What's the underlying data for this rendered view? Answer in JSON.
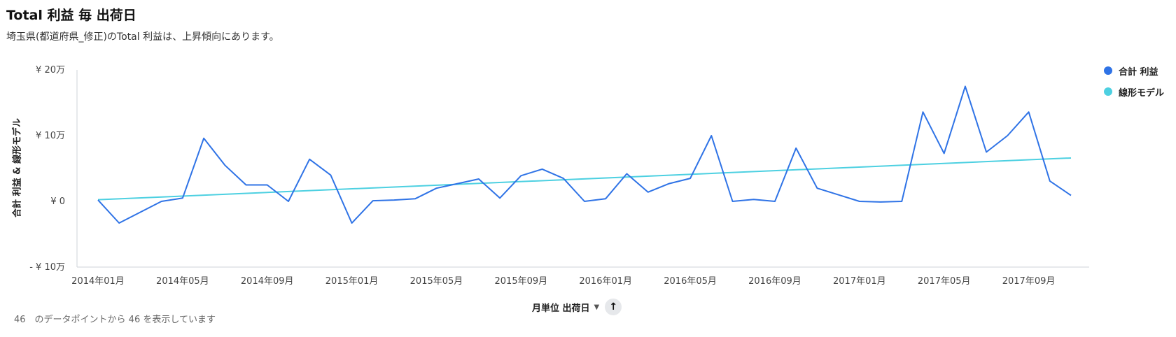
{
  "header": {
    "title": "Total 利益 毎 出荷日",
    "subtitle": "埼玉県(都道府県_修正)のTotal 利益は、上昇傾向にあります。"
  },
  "axis": {
    "y_title": "合計 利益 & 線形モデル",
    "x_title": "月単位 出荷日"
  },
  "footer": {
    "text": "46　のデータポイントから 46 を表示しています"
  },
  "colors": {
    "profit": "#2f73e6",
    "model": "#4dd0e1",
    "axis": "#cfd3d8"
  },
  "chart_data": {
    "type": "line",
    "ylim": [
      -100000,
      200000
    ],
    "y_ticks": [
      {
        "value": 200000,
        "label": "¥ 20万"
      },
      {
        "value": 100000,
        "label": "¥ 10万"
      },
      {
        "value": 0,
        "label": "¥ 0"
      },
      {
        "value": -100000,
        "label": "- ¥ 10万"
      }
    ],
    "x_tick_labels": [
      {
        "index": 0,
        "label": "2014年01月"
      },
      {
        "index": 4,
        "label": "2014年05月"
      },
      {
        "index": 8,
        "label": "2014年09月"
      },
      {
        "index": 12,
        "label": "2015年01月"
      },
      {
        "index": 16,
        "label": "2015年05月"
      },
      {
        "index": 20,
        "label": "2015年09月"
      },
      {
        "index": 24,
        "label": "2016年01月"
      },
      {
        "index": 28,
        "label": "2016年05月"
      },
      {
        "index": 32,
        "label": "2016年09月"
      },
      {
        "index": 36,
        "label": "2017年01月"
      },
      {
        "index": 40,
        "label": "2017年05月"
      },
      {
        "index": 44,
        "label": "2017年09月"
      }
    ],
    "x": [
      "2014-01",
      "2014-02",
      "2014-04",
      "2014-05",
      "2014-06",
      "2014-07",
      "2014-08",
      "2014-09",
      "2014-10",
      "2014-11",
      "2014-12",
      "2015-01",
      "2015-02",
      "2015-03",
      "2015-04",
      "2015-05",
      "2015-06",
      "2015-07",
      "2015-08",
      "2015-09",
      "2015-10",
      "2015-11",
      "2015-12",
      "2016-01",
      "2016-02",
      "2016-03",
      "2016-04",
      "2016-05",
      "2016-06",
      "2016-07",
      "2016-08",
      "2016-09",
      "2016-10",
      "2016-11",
      "2016-12",
      "2017-01",
      "2017-02",
      "2017-03",
      "2017-04",
      "2017-05",
      "2017-06",
      "2017-07",
      "2017-08",
      "2017-09",
      "2017-10",
      "2017-11"
    ],
    "x_index": [
      0,
      1,
      3,
      4,
      5,
      6,
      7,
      8,
      9,
      10,
      11,
      12,
      13,
      14,
      15,
      16,
      17,
      18,
      19,
      20,
      21,
      22,
      23,
      24,
      25,
      26,
      27,
      28,
      29,
      30,
      31,
      32,
      33,
      34,
      35,
      36,
      37,
      38,
      39,
      40,
      41,
      42,
      43,
      44,
      45,
      46
    ],
    "series": [
      {
        "name": "合計 利益",
        "color": "#2f73e6",
        "values": [
          2000,
          -33000,
          0,
          5000,
          96000,
          55000,
          25000,
          25000,
          0,
          64000,
          40000,
          -33000,
          1000,
          2000,
          4000,
          20000,
          27000,
          34000,
          5000,
          39000,
          49000,
          35000,
          0,
          4000,
          42000,
          14000,
          27000,
          35000,
          100000,
          0,
          3000,
          0,
          81000,
          20000,
          10000,
          0,
          -1000,
          0,
          136000,
          73000,
          175000,
          75000,
          100000,
          136000,
          31000,
          9000
        ]
      },
      {
        "name": "線形モデル",
        "color": "#4dd0e1",
        "start": 2500,
        "end": 66000
      }
    ],
    "x_last_index": 46,
    "grid": false,
    "legend_position": "right"
  }
}
